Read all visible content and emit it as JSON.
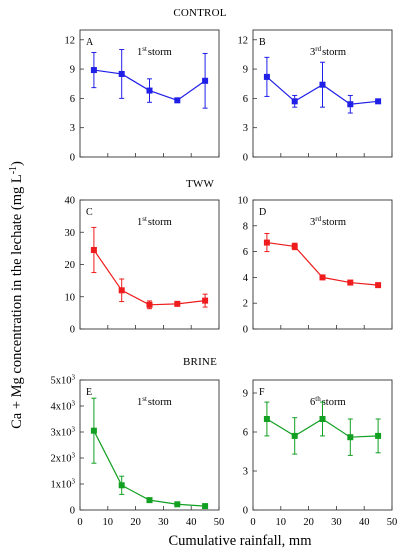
{
  "figure": {
    "ylabel": "Ca + Mg concentration in the lechate (mg L",
    "ylabel_sup": "-1",
    "ylabel_close": ")",
    "xlabel": "Cumulative rainfall, mm"
  },
  "sections": [
    "CONTROL",
    "TWW",
    "BRINE"
  ],
  "chart_data": [
    {
      "type": "line",
      "panel": "A",
      "storm_num": "1",
      "storm_sup": "st",
      "storm_word": "storm",
      "color": "#1f1fe8",
      "x": [
        5,
        15,
        25,
        35,
        45
      ],
      "y": [
        8.9,
        8.5,
        6.8,
        5.8,
        7.8
      ],
      "err": [
        1.8,
        2.5,
        1.2,
        0.2,
        2.8
      ],
      "xlim": [
        0,
        50
      ],
      "ylim": [
        0,
        13
      ],
      "yticks": [
        0,
        3,
        6,
        9,
        12
      ],
      "ytick_labels": [
        "0",
        "3",
        "6",
        "9",
        "12"
      ],
      "xticks": [
        0,
        10,
        20,
        30,
        40,
        50
      ],
      "xtick_labels": []
    },
    {
      "type": "line",
      "panel": "B",
      "storm_num": "3",
      "storm_sup": "rd",
      "storm_word": "storm",
      "color": "#1f1fe8",
      "x": [
        5,
        15,
        25,
        35,
        45
      ],
      "y": [
        8.2,
        5.7,
        7.4,
        5.4,
        5.7
      ],
      "err": [
        2.0,
        0.6,
        2.3,
        0.9,
        0.0
      ],
      "xlim": [
        0,
        50
      ],
      "ylim": [
        0,
        13
      ],
      "yticks": [
        0,
        3,
        6,
        9,
        12
      ],
      "ytick_labels": [
        "0",
        "3",
        "6",
        "9",
        "12"
      ],
      "xticks": [
        0,
        10,
        20,
        30,
        40,
        50
      ],
      "xtick_labels": []
    },
    {
      "type": "line",
      "panel": "C",
      "storm_num": "1",
      "storm_sup": "st",
      "storm_word": "storm",
      "color": "#ee1c1c",
      "x": [
        5,
        15,
        25,
        35,
        45
      ],
      "y": [
        24.5,
        12.0,
        7.5,
        7.8,
        8.8
      ],
      "err": [
        7.0,
        3.5,
        1.2,
        0.6,
        2.0
      ],
      "xlim": [
        0,
        50
      ],
      "ylim": [
        0,
        40
      ],
      "yticks": [
        0,
        10,
        20,
        30,
        40
      ],
      "ytick_labels": [
        "0",
        "10",
        "20",
        "30",
        "40"
      ],
      "xticks": [
        0,
        10,
        20,
        30,
        40,
        50
      ],
      "xtick_labels": []
    },
    {
      "type": "line",
      "panel": "D",
      "storm_num": "3",
      "storm_sup": "rd",
      "storm_word": "storm",
      "color": "#ee1c1c",
      "x": [
        5,
        15,
        25,
        35,
        45
      ],
      "y": [
        6.7,
        6.4,
        4.0,
        3.6,
        3.4
      ],
      "err": [
        0.7,
        0.25,
        0.0,
        0.0,
        0.0
      ],
      "xlim": [
        0,
        50
      ],
      "ylim": [
        0,
        10
      ],
      "yticks": [
        0,
        2,
        4,
        6,
        8,
        10
      ],
      "ytick_labels": [
        "0",
        "2",
        "4",
        "6",
        "8",
        "10"
      ],
      "xticks": [
        0,
        10,
        20,
        30,
        40,
        50
      ],
      "xtick_labels": []
    },
    {
      "type": "line",
      "panel": "E",
      "storm_num": "1",
      "storm_sup": "st",
      "storm_word": "storm",
      "color": "#11a021",
      "x": [
        5,
        15,
        25,
        35,
        45
      ],
      "y": [
        3050,
        950,
        380,
        220,
        150
      ],
      "err": [
        1250,
        350,
        80,
        60,
        40
      ],
      "xlim": [
        0,
        50
      ],
      "ylim": [
        0,
        5000
      ],
      "yticks": [
        0,
        1000,
        2000,
        3000,
        4000,
        5000
      ],
      "ytick_labels": [
        "0",
        "1x10",
        "2x10",
        "3x10",
        "4x10",
        "5x10"
      ],
      "ytick_sups": [
        "",
        "3",
        "3",
        "3",
        "3",
        "3"
      ],
      "xticks": [
        0,
        10,
        20,
        30,
        40,
        50
      ],
      "xtick_labels": [
        "0",
        "10",
        "20",
        "30",
        "40",
        "50"
      ]
    },
    {
      "type": "line",
      "panel": "F",
      "storm_num": "6",
      "storm_sup": "th",
      "storm_word": "storm",
      "color": "#11a021",
      "x": [
        5,
        15,
        25,
        35,
        45
      ],
      "y": [
        7.0,
        5.7,
        7.0,
        5.6,
        5.7
      ],
      "err": [
        1.3,
        1.4,
        1.3,
        1.4,
        1.3
      ],
      "xlim": [
        0,
        50
      ],
      "ylim": [
        0,
        10
      ],
      "yticks": [
        0,
        3,
        6,
        9
      ],
      "ytick_labels": [
        "0",
        "3",
        "6",
        "9"
      ],
      "xticks": [
        0,
        10,
        20,
        30,
        40,
        50
      ],
      "xtick_labels": [
        "0",
        "10",
        "20",
        "30",
        "40",
        "50"
      ]
    }
  ]
}
